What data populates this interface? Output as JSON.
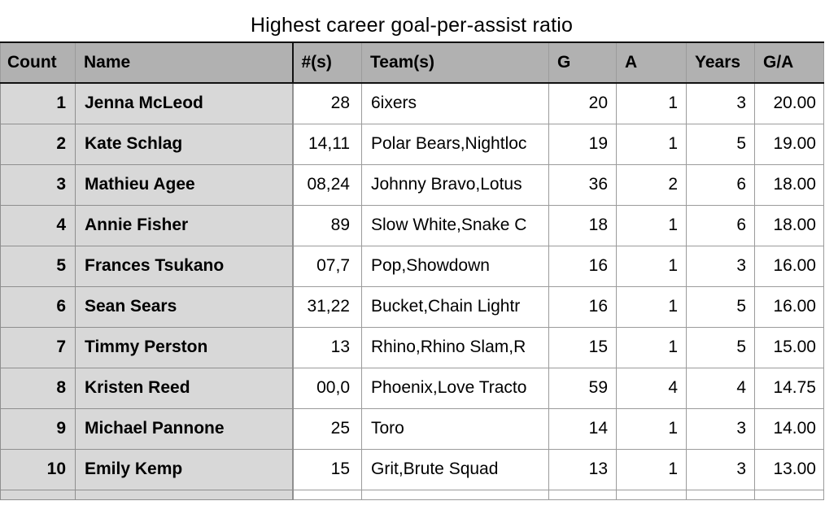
{
  "title": "Highest career goal-per-assist ratio",
  "table": {
    "columns": [
      {
        "key": "count",
        "label": "Count"
      },
      {
        "key": "name",
        "label": "Name"
      },
      {
        "key": "nums",
        "label": "#(s)"
      },
      {
        "key": "teams",
        "label": "Team(s)"
      },
      {
        "key": "g",
        "label": "G"
      },
      {
        "key": "a",
        "label": "A"
      },
      {
        "key": "years",
        "label": "Years"
      },
      {
        "key": "ga",
        "label": "G/A"
      }
    ],
    "rows": [
      {
        "count": "1",
        "name": "Jenna McLeod",
        "nums": "28",
        "teams": "6ixers",
        "g": "20",
        "a": "1",
        "years": "3",
        "ga": "20.00"
      },
      {
        "count": "2",
        "name": "Kate Schlag",
        "nums": "14,11",
        "teams": "Polar Bears,Nightloc",
        "g": "19",
        "a": "1",
        "years": "5",
        "ga": "19.00"
      },
      {
        "count": "3",
        "name": "Mathieu Agee",
        "nums": "08,24",
        "teams": "Johnny Bravo,Lotus",
        "g": "36",
        "a": "2",
        "years": "6",
        "ga": "18.00"
      },
      {
        "count": "4",
        "name": "Annie Fisher",
        "nums": "89",
        "teams": "Slow White,Snake C",
        "g": "18",
        "a": "1",
        "years": "6",
        "ga": "18.00"
      },
      {
        "count": "5",
        "name": "Frances Tsukano",
        "nums": "07,7",
        "teams": "Pop,Showdown",
        "g": "16",
        "a": "1",
        "years": "3",
        "ga": "16.00"
      },
      {
        "count": "6",
        "name": "Sean Sears",
        "nums": "31,22",
        "teams": "Bucket,Chain Lightr",
        "g": "16",
        "a": "1",
        "years": "5",
        "ga": "16.00"
      },
      {
        "count": "7",
        "name": "Timmy Perston",
        "nums": "13",
        "teams": "Rhino,Rhino Slam,R",
        "g": "15",
        "a": "1",
        "years": "5",
        "ga": "15.00"
      },
      {
        "count": "8",
        "name": "Kristen Reed",
        "nums": "00,0",
        "teams": "Phoenix,Love Tracto",
        "g": "59",
        "a": "4",
        "years": "4",
        "ga": "14.75"
      },
      {
        "count": "9",
        "name": "Michael Pannone",
        "nums": "25",
        "teams": "Toro",
        "g": "14",
        "a": "1",
        "years": "3",
        "ga": "14.00"
      },
      {
        "count": "10",
        "name": "Emily Kemp",
        "nums": "15",
        "teams": "Grit,Brute Squad",
        "g": "13",
        "a": "1",
        "years": "3",
        "ga": "13.00"
      }
    ],
    "partial_row_visible": true
  },
  "colors": {
    "header_bg": "#b1b1b1",
    "frozen_cell_bg": "#d8d8d8",
    "cell_bg": "#ffffff",
    "grid_line": "#9b9b9b",
    "heavy_line": "#111111",
    "text": "#000000"
  }
}
